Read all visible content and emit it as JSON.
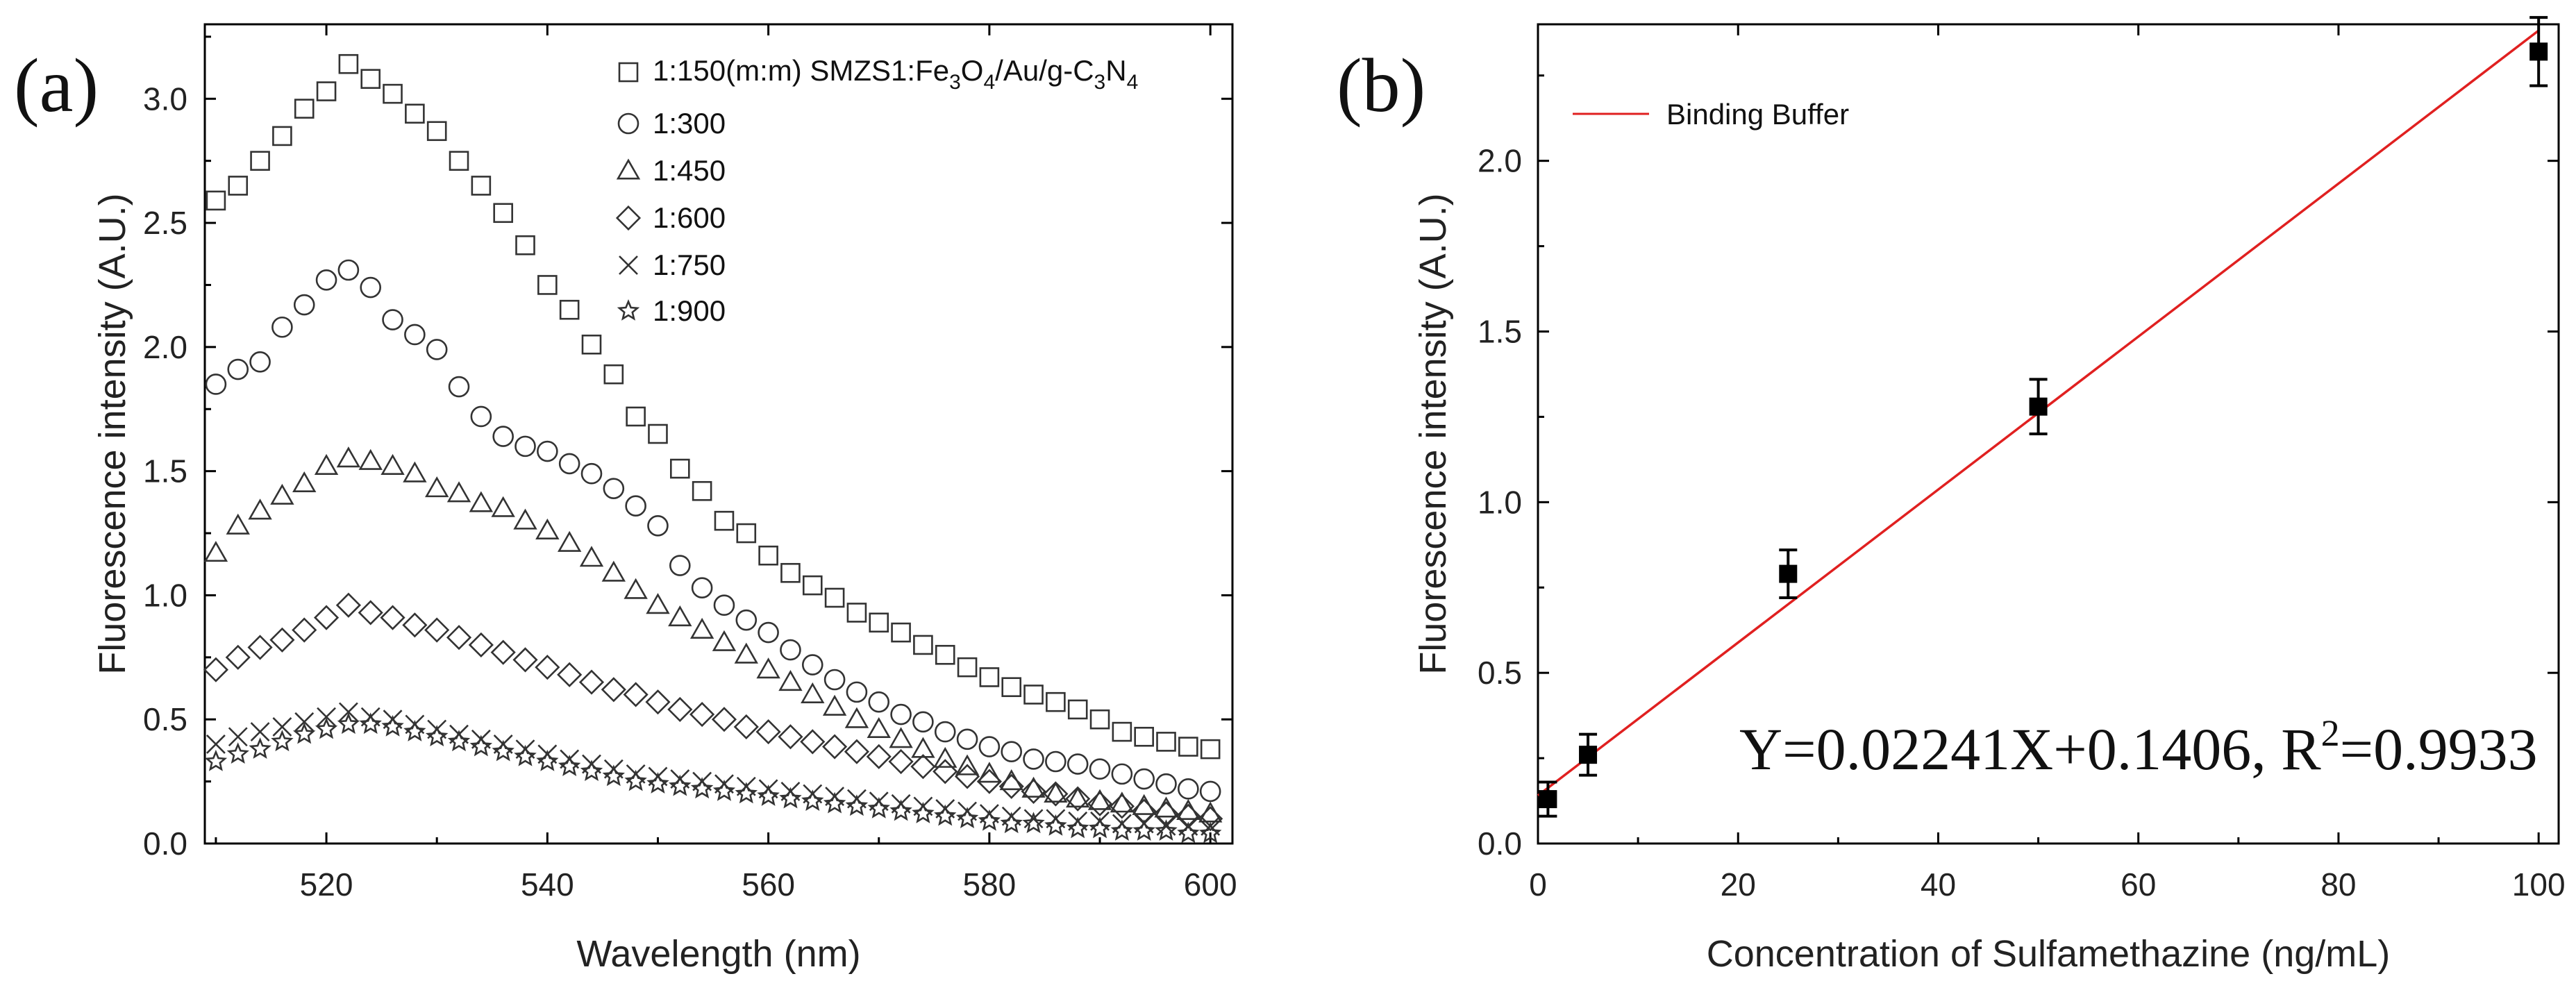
{
  "chart_data": [
    {
      "panel_label": "(a)",
      "type": "scatter",
      "xlabel": "Wavelength (nm)",
      "ylabel": "Fluorescence intensity (A.U.)",
      "xlim": [
        509,
        602
      ],
      "ylim": [
        0,
        3.3
      ],
      "x_ticks": [
        520,
        540,
        560,
        580,
        600
      ],
      "y_ticks": [
        0.0,
        0.5,
        1.0,
        1.5,
        2.0,
        2.5,
        3.0
      ],
      "x_tick_labels": [
        "520",
        "540",
        "560",
        "580",
        "600"
      ],
      "y_tick_labels": [
        "0.0",
        "0.5",
        "1.0",
        "1.5",
        "2.0",
        "2.5",
        "3.0"
      ],
      "legend": {
        "first_entry_text": {
          "ratio": "1:150(m:m)",
          "prefix": "SMZS1:Fe",
          "sub1": "3",
          "mid1": "O",
          "sub2": "4",
          "mid2": "/Au/g-C",
          "sub3": "3",
          "mid3": "N",
          "sub4": "4"
        }
      },
      "x": [
        510,
        512,
        514,
        516,
        518,
        520,
        522,
        524,
        526,
        528,
        530,
        532,
        534,
        536,
        538,
        540,
        542,
        544,
        546,
        548,
        550,
        552,
        554,
        556,
        558,
        560,
        562,
        564,
        566,
        568,
        570,
        572,
        574,
        576,
        578,
        580,
        582,
        584,
        586,
        588,
        590,
        592,
        594,
        596,
        598,
        600
      ],
      "series": [
        {
          "name": "1:150(m:m) SMZS1:Fe3O4/Au/g-C3N4",
          "marker": "square",
          "values": [
            2.59,
            2.65,
            2.75,
            2.85,
            2.96,
            3.03,
            3.14,
            3.08,
            3.02,
            2.94,
            2.87,
            2.75,
            2.65,
            2.54,
            2.41,
            2.25,
            2.15,
            2.01,
            1.89,
            1.72,
            1.65,
            1.51,
            1.42,
            1.3,
            1.25,
            1.16,
            1.09,
            1.04,
            0.99,
            0.93,
            0.89,
            0.85,
            0.8,
            0.76,
            0.71,
            0.67,
            0.63,
            0.6,
            0.57,
            0.54,
            0.5,
            0.45,
            0.43,
            0.41,
            0.39,
            0.38
          ]
        },
        {
          "name": "1:300",
          "marker": "circle",
          "values": [
            1.85,
            1.91,
            1.94,
            2.08,
            2.17,
            2.27,
            2.31,
            2.24,
            2.11,
            2.05,
            1.99,
            1.84,
            1.72,
            1.64,
            1.6,
            1.58,
            1.53,
            1.49,
            1.43,
            1.36,
            1.28,
            1.12,
            1.03,
            0.96,
            0.9,
            0.85,
            0.78,
            0.72,
            0.66,
            0.61,
            0.57,
            0.52,
            0.49,
            0.45,
            0.42,
            0.39,
            0.37,
            0.34,
            0.33,
            0.32,
            0.3,
            0.28,
            0.26,
            0.24,
            0.22,
            0.21
          ]
        },
        {
          "name": "1:450",
          "marker": "triangle",
          "values": [
            1.17,
            1.28,
            1.34,
            1.4,
            1.45,
            1.52,
            1.55,
            1.54,
            1.52,
            1.49,
            1.43,
            1.41,
            1.37,
            1.35,
            1.3,
            1.26,
            1.21,
            1.15,
            1.09,
            1.02,
            0.96,
            0.91,
            0.86,
            0.81,
            0.76,
            0.7,
            0.65,
            0.6,
            0.55,
            0.5,
            0.46,
            0.42,
            0.38,
            0.34,
            0.31,
            0.28,
            0.25,
            0.22,
            0.2,
            0.18,
            0.17,
            0.16,
            0.15,
            0.14,
            0.13,
            0.12
          ]
        },
        {
          "name": "1:600",
          "marker": "diamond",
          "values": [
            0.7,
            0.75,
            0.79,
            0.82,
            0.86,
            0.91,
            0.96,
            0.93,
            0.91,
            0.88,
            0.86,
            0.83,
            0.8,
            0.77,
            0.74,
            0.71,
            0.68,
            0.65,
            0.62,
            0.6,
            0.57,
            0.54,
            0.52,
            0.5,
            0.47,
            0.45,
            0.43,
            0.41,
            0.39,
            0.37,
            0.35,
            0.33,
            0.31,
            0.29,
            0.27,
            0.25,
            0.23,
            0.21,
            0.2,
            0.18,
            0.16,
            0.15,
            0.13,
            0.12,
            0.11,
            0.1
          ]
        },
        {
          "name": "1:750",
          "marker": "cross",
          "values": [
            0.4,
            0.43,
            0.45,
            0.47,
            0.49,
            0.51,
            0.53,
            0.51,
            0.5,
            0.48,
            0.46,
            0.44,
            0.42,
            0.4,
            0.38,
            0.36,
            0.34,
            0.32,
            0.3,
            0.28,
            0.27,
            0.26,
            0.25,
            0.24,
            0.23,
            0.22,
            0.21,
            0.2,
            0.19,
            0.18,
            0.17,
            0.16,
            0.15,
            0.14,
            0.13,
            0.12,
            0.11,
            0.1,
            0.1,
            0.09,
            0.09,
            0.08,
            0.08,
            0.07,
            0.07,
            0.07
          ]
        },
        {
          "name": "1:900",
          "marker": "star",
          "values": [
            0.33,
            0.36,
            0.38,
            0.41,
            0.44,
            0.46,
            0.48,
            0.48,
            0.47,
            0.45,
            0.43,
            0.41,
            0.39,
            0.37,
            0.35,
            0.33,
            0.31,
            0.29,
            0.27,
            0.25,
            0.24,
            0.23,
            0.22,
            0.21,
            0.2,
            0.19,
            0.18,
            0.17,
            0.16,
            0.15,
            0.14,
            0.13,
            0.12,
            0.11,
            0.1,
            0.09,
            0.08,
            0.08,
            0.07,
            0.06,
            0.06,
            0.05,
            0.05,
            0.05,
            0.04,
            0.04
          ]
        }
      ]
    },
    {
      "panel_label": "(b)",
      "type": "scatter",
      "xlabel": "Concentration of Sulfamethazine (ng/mL)",
      "ylabel": "Fluorescence intensity (A.U.)",
      "xlim": [
        0,
        102
      ],
      "ylim": [
        0,
        2.4
      ],
      "x_ticks": [
        0,
        20,
        40,
        60,
        80,
        100
      ],
      "y_ticks": [
        0.0,
        0.5,
        1.0,
        1.5,
        2.0
      ],
      "x_tick_labels": [
        "0",
        "20",
        "40",
        "60",
        "80",
        "100"
      ],
      "y_tick_labels": [
        "0.0",
        "0.5",
        "1.0",
        "1.5",
        "2.0"
      ],
      "legend_label": "Binding Buffer",
      "fit_color": "#e02020",
      "fit": {
        "slope": 0.02241,
        "intercept": 0.1406,
        "x_range": [
          0,
          100
        ]
      },
      "equation": {
        "main": "Y=0.02241X+0.1406, R",
        "sup": "2",
        "tail": "=0.9933"
      },
      "points": {
        "x": [
          1,
          5,
          25,
          50,
          100
        ],
        "y": [
          0.13,
          0.26,
          0.79,
          1.28,
          2.32
        ],
        "err": [
          0.05,
          0.06,
          0.07,
          0.08,
          0.1
        ]
      }
    }
  ]
}
